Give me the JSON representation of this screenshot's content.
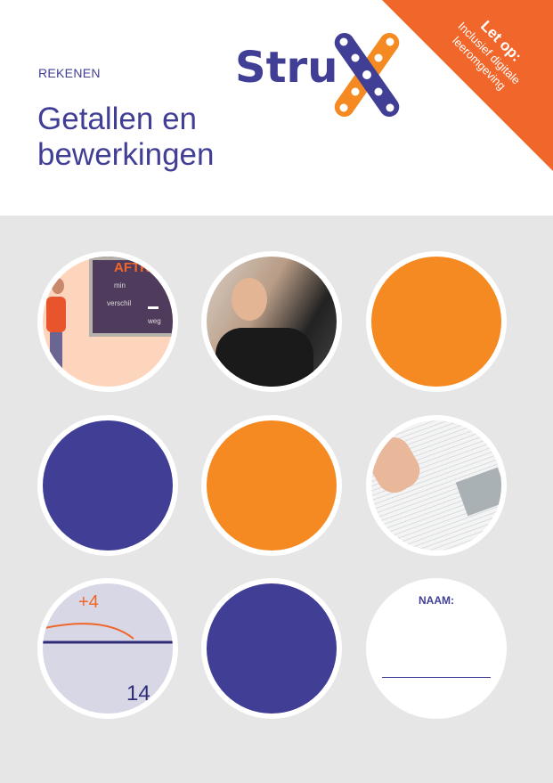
{
  "header": {
    "subject": "REKENEN",
    "title_line1": "Getallen en",
    "title_line2": "bewerkingen",
    "logo_text": "Stru",
    "logo_letter": "X"
  },
  "banner": {
    "heading": "Let op:",
    "line1": "Inclusief digitale",
    "line2": "leeromgeving"
  },
  "tiles": {
    "board": {
      "heading": "AFTR",
      "words": [
        "min",
        "verschil",
        "weg"
      ]
    },
    "numberline": {
      "jump": "+4",
      "number": "14"
    },
    "name": {
      "label": "NAAM:"
    }
  },
  "colors": {
    "purple": "#413e96",
    "orange": "#f48a21",
    "banner": "#f1662a",
    "background": "#e6e6e6"
  }
}
